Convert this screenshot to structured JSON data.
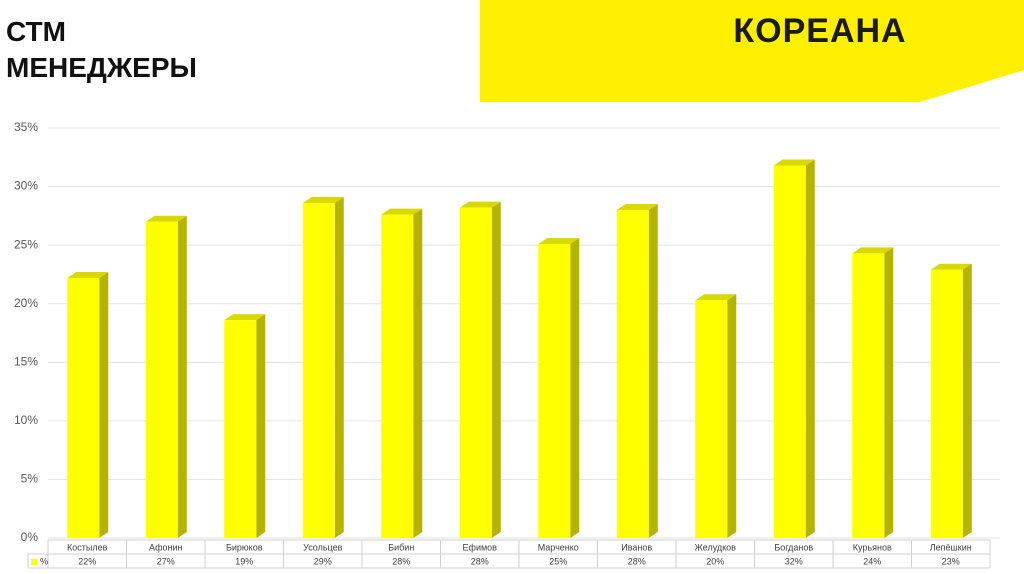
{
  "logo": "КОРЕАНА",
  "chart_data": {
    "type": "bar3d",
    "title": "СТМ МЕНЕДЖЕРЫ",
    "categories": [
      "Костылев",
      "Афонин",
      "Бирюков",
      "Усольцев",
      "Бибин",
      "Ефимов",
      "Марченко",
      "Иванов",
      "Желудков",
      "Богданов",
      "Курьянов",
      "Лепёшкин"
    ],
    "series": [
      {
        "name": "%",
        "color": "#ffff00",
        "values": [
          22.2,
          27,
          18.6,
          28.6,
          27.6,
          28.2,
          25.1,
          28,
          20.3,
          31.8,
          24.3,
          22.9
        ],
        "value_labels": [
          "22%",
          "27%",
          "19%",
          "29%",
          "28%",
          "28%",
          "25%",
          "28%",
          "20%",
          "32%",
          "24%",
          "23%"
        ]
      }
    ],
    "ylim": [
      0,
      35
    ],
    "yticks": [
      {
        "value": 0,
        "label": "0%"
      },
      {
        "value": 5,
        "label": "5%"
      },
      {
        "value": 10,
        "label": "10%"
      },
      {
        "value": 15,
        "label": "15%"
      },
      {
        "value": 20,
        "label": "20%"
      },
      {
        "value": 25,
        "label": "25%"
      },
      {
        "value": 30,
        "label": "30%"
      },
      {
        "value": 35,
        "label": "35%"
      }
    ],
    "grid": true,
    "legend": "data-table"
  }
}
